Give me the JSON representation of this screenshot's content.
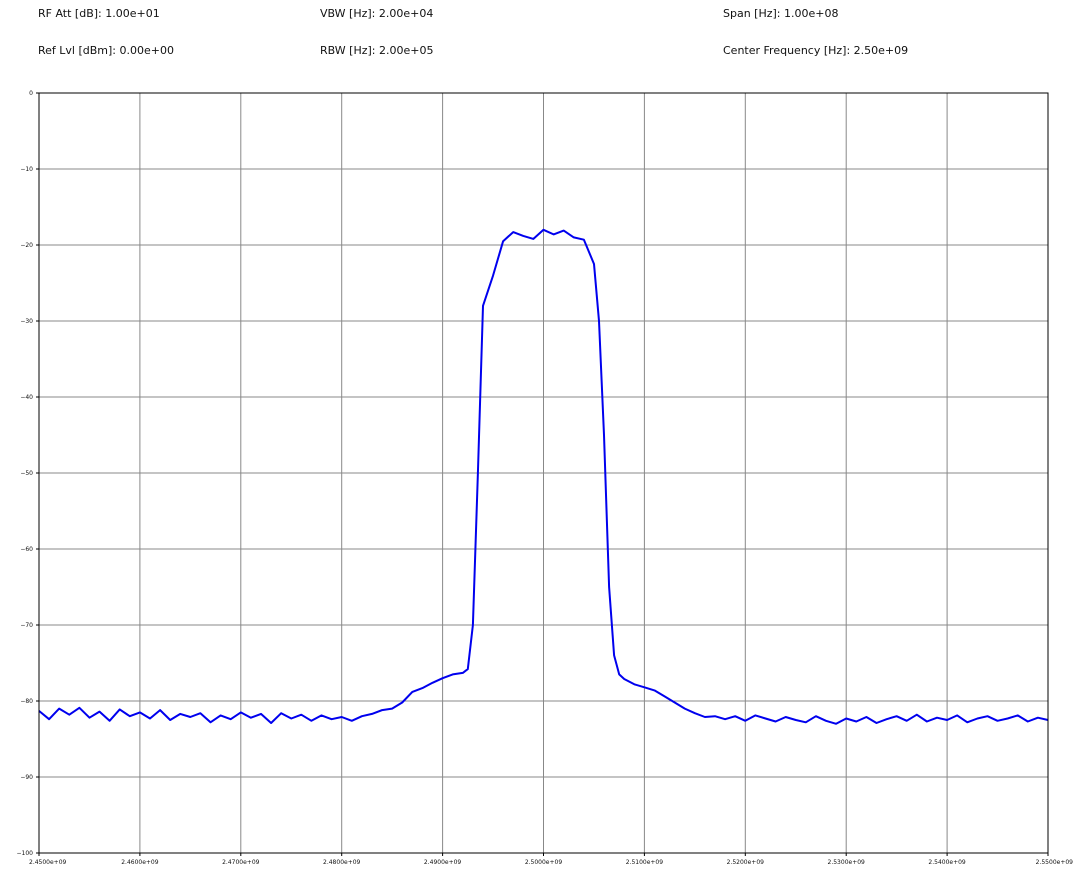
{
  "header": {
    "rf_att": "RF Att [dB]: 1.00e+01",
    "vbw": "VBW [Hz]: 2.00e+04",
    "span": "Span [Hz]: 1.00e+08",
    "ref_lvl": "Ref Lvl [dBm]: 0.00e+00",
    "rbw": "RBW [Hz]: 2.00e+05",
    "center_frequency": "Center Frequency [Hz]: 2.50e+09"
  },
  "colors": {
    "trace": "#0000ee",
    "grid": "#888888",
    "axes": "#000000"
  },
  "chart_data": {
    "type": "line",
    "title": "",
    "xlabel": "",
    "ylabel": "",
    "xlim": [
      2450000000,
      2550000000
    ],
    "ylim": [
      -100,
      0
    ],
    "grid": true,
    "x_ticks": [
      2450000000,
      2460000000,
      2470000000,
      2480000000,
      2490000000,
      2500000000,
      2510000000,
      2520000000,
      2530000000,
      2540000000,
      2550000000
    ],
    "x_tick_labels": [
      "2.4500e+09",
      "2.4600e+09",
      "2.4700e+09",
      "2.4800e+09",
      "2.4900e+09",
      "2.5000e+09",
      "2.5100e+09",
      "2.5200e+09",
      "2.5300e+09",
      "2.5400e+09",
      "2.5500e+09"
    ],
    "y_ticks": [
      0,
      -10,
      -20,
      -30,
      -40,
      -50,
      -60,
      -70,
      -80,
      -90,
      -100
    ],
    "y_tick_labels": [
      "0",
      "−10",
      "−20",
      "−30",
      "−40",
      "−50",
      "−60",
      "−70",
      "−80",
      "−90",
      "−100"
    ],
    "series": [
      {
        "x": [
          2450000000,
          2451000000,
          2452000000,
          2453000000,
          2454000000,
          2455000000,
          2456000000,
          2457000000,
          2458000000,
          2459000000,
          2460000000,
          2461000000,
          2462000000,
          2463000000,
          2464000000,
          2465000000,
          2466000000,
          2467000000,
          2468000000,
          2469000000,
          2470000000,
          2471000000,
          2472000000,
          2473000000,
          2474000000,
          2475000000,
          2476000000,
          2477000000,
          2478000000,
          2479000000,
          2480000000,
          2481000000,
          2482000000,
          2483000000,
          2484000000,
          2485000000,
          2486000000,
          2487000000,
          2488000000,
          2489000000,
          2490000000,
          2491000000,
          2492000000,
          2492500000,
          2493000000,
          2493500000,
          2494000000,
          2495000000,
          2496000000,
          2497000000,
          2498000000,
          2499000000,
          2500000000,
          2501000000,
          2502000000,
          2503000000,
          2504000000,
          2505000000,
          2505500000,
          2506000000,
          2506500000,
          2507000000,
          2507500000,
          2508000000,
          2509000000,
          2510000000,
          2511000000,
          2512000000,
          2513000000,
          2514000000,
          2515000000,
          2516000000,
          2517000000,
          2518000000,
          2519000000,
          2520000000,
          2521000000,
          2522000000,
          2523000000,
          2524000000,
          2525000000,
          2526000000,
          2527000000,
          2528000000,
          2529000000,
          2530000000,
          2531000000,
          2532000000,
          2533000000,
          2534000000,
          2535000000,
          2536000000,
          2537000000,
          2538000000,
          2539000000,
          2540000000,
          2541000000,
          2542000000,
          2543000000,
          2544000000,
          2545000000,
          2546000000,
          2547000000,
          2548000000,
          2549000000,
          2550000000
        ],
        "y": [
          -81.3,
          -82.4,
          -81.0,
          -81.8,
          -80.9,
          -82.2,
          -81.4,
          -82.6,
          -81.1,
          -82.0,
          -81.5,
          -82.3,
          -81.2,
          -82.5,
          -81.7,
          -82.1,
          -81.6,
          -82.8,
          -81.9,
          -82.4,
          -81.5,
          -82.2,
          -81.7,
          -82.9,
          -81.6,
          -82.3,
          -81.8,
          -82.6,
          -81.9,
          -82.4,
          -82.1,
          -82.6,
          -82.0,
          -81.7,
          -81.2,
          -81.0,
          -80.2,
          -78.8,
          -78.3,
          -77.6,
          -77.0,
          -76.5,
          -76.3,
          -75.8,
          -70.0,
          -50.0,
          -28.0,
          -24.0,
          -19.5,
          -18.3,
          -18.8,
          -19.2,
          -18.0,
          -18.6,
          -18.1,
          -19.0,
          -19.3,
          -22.5,
          -30.0,
          -45.0,
          -65.0,
          -74.0,
          -76.5,
          -77.1,
          -77.8,
          -78.2,
          -78.6,
          -79.4,
          -80.2,
          -81.0,
          -81.6,
          -82.1,
          -82.0,
          -82.4,
          -82.0,
          -82.6,
          -81.9,
          -82.3,
          -82.7,
          -82.1,
          -82.5,
          -82.8,
          -82.0,
          -82.6,
          -83.0,
          -82.3,
          -82.7,
          -82.1,
          -82.9,
          -82.4,
          -82.0,
          -82.6,
          -81.8,
          -82.7,
          -82.2,
          -82.5,
          -81.9,
          -82.8,
          -82.3,
          -82.0,
          -82.6,
          -82.3,
          -81.9,
          -82.7,
          -82.2,
          -82.5
        ]
      }
    ]
  }
}
